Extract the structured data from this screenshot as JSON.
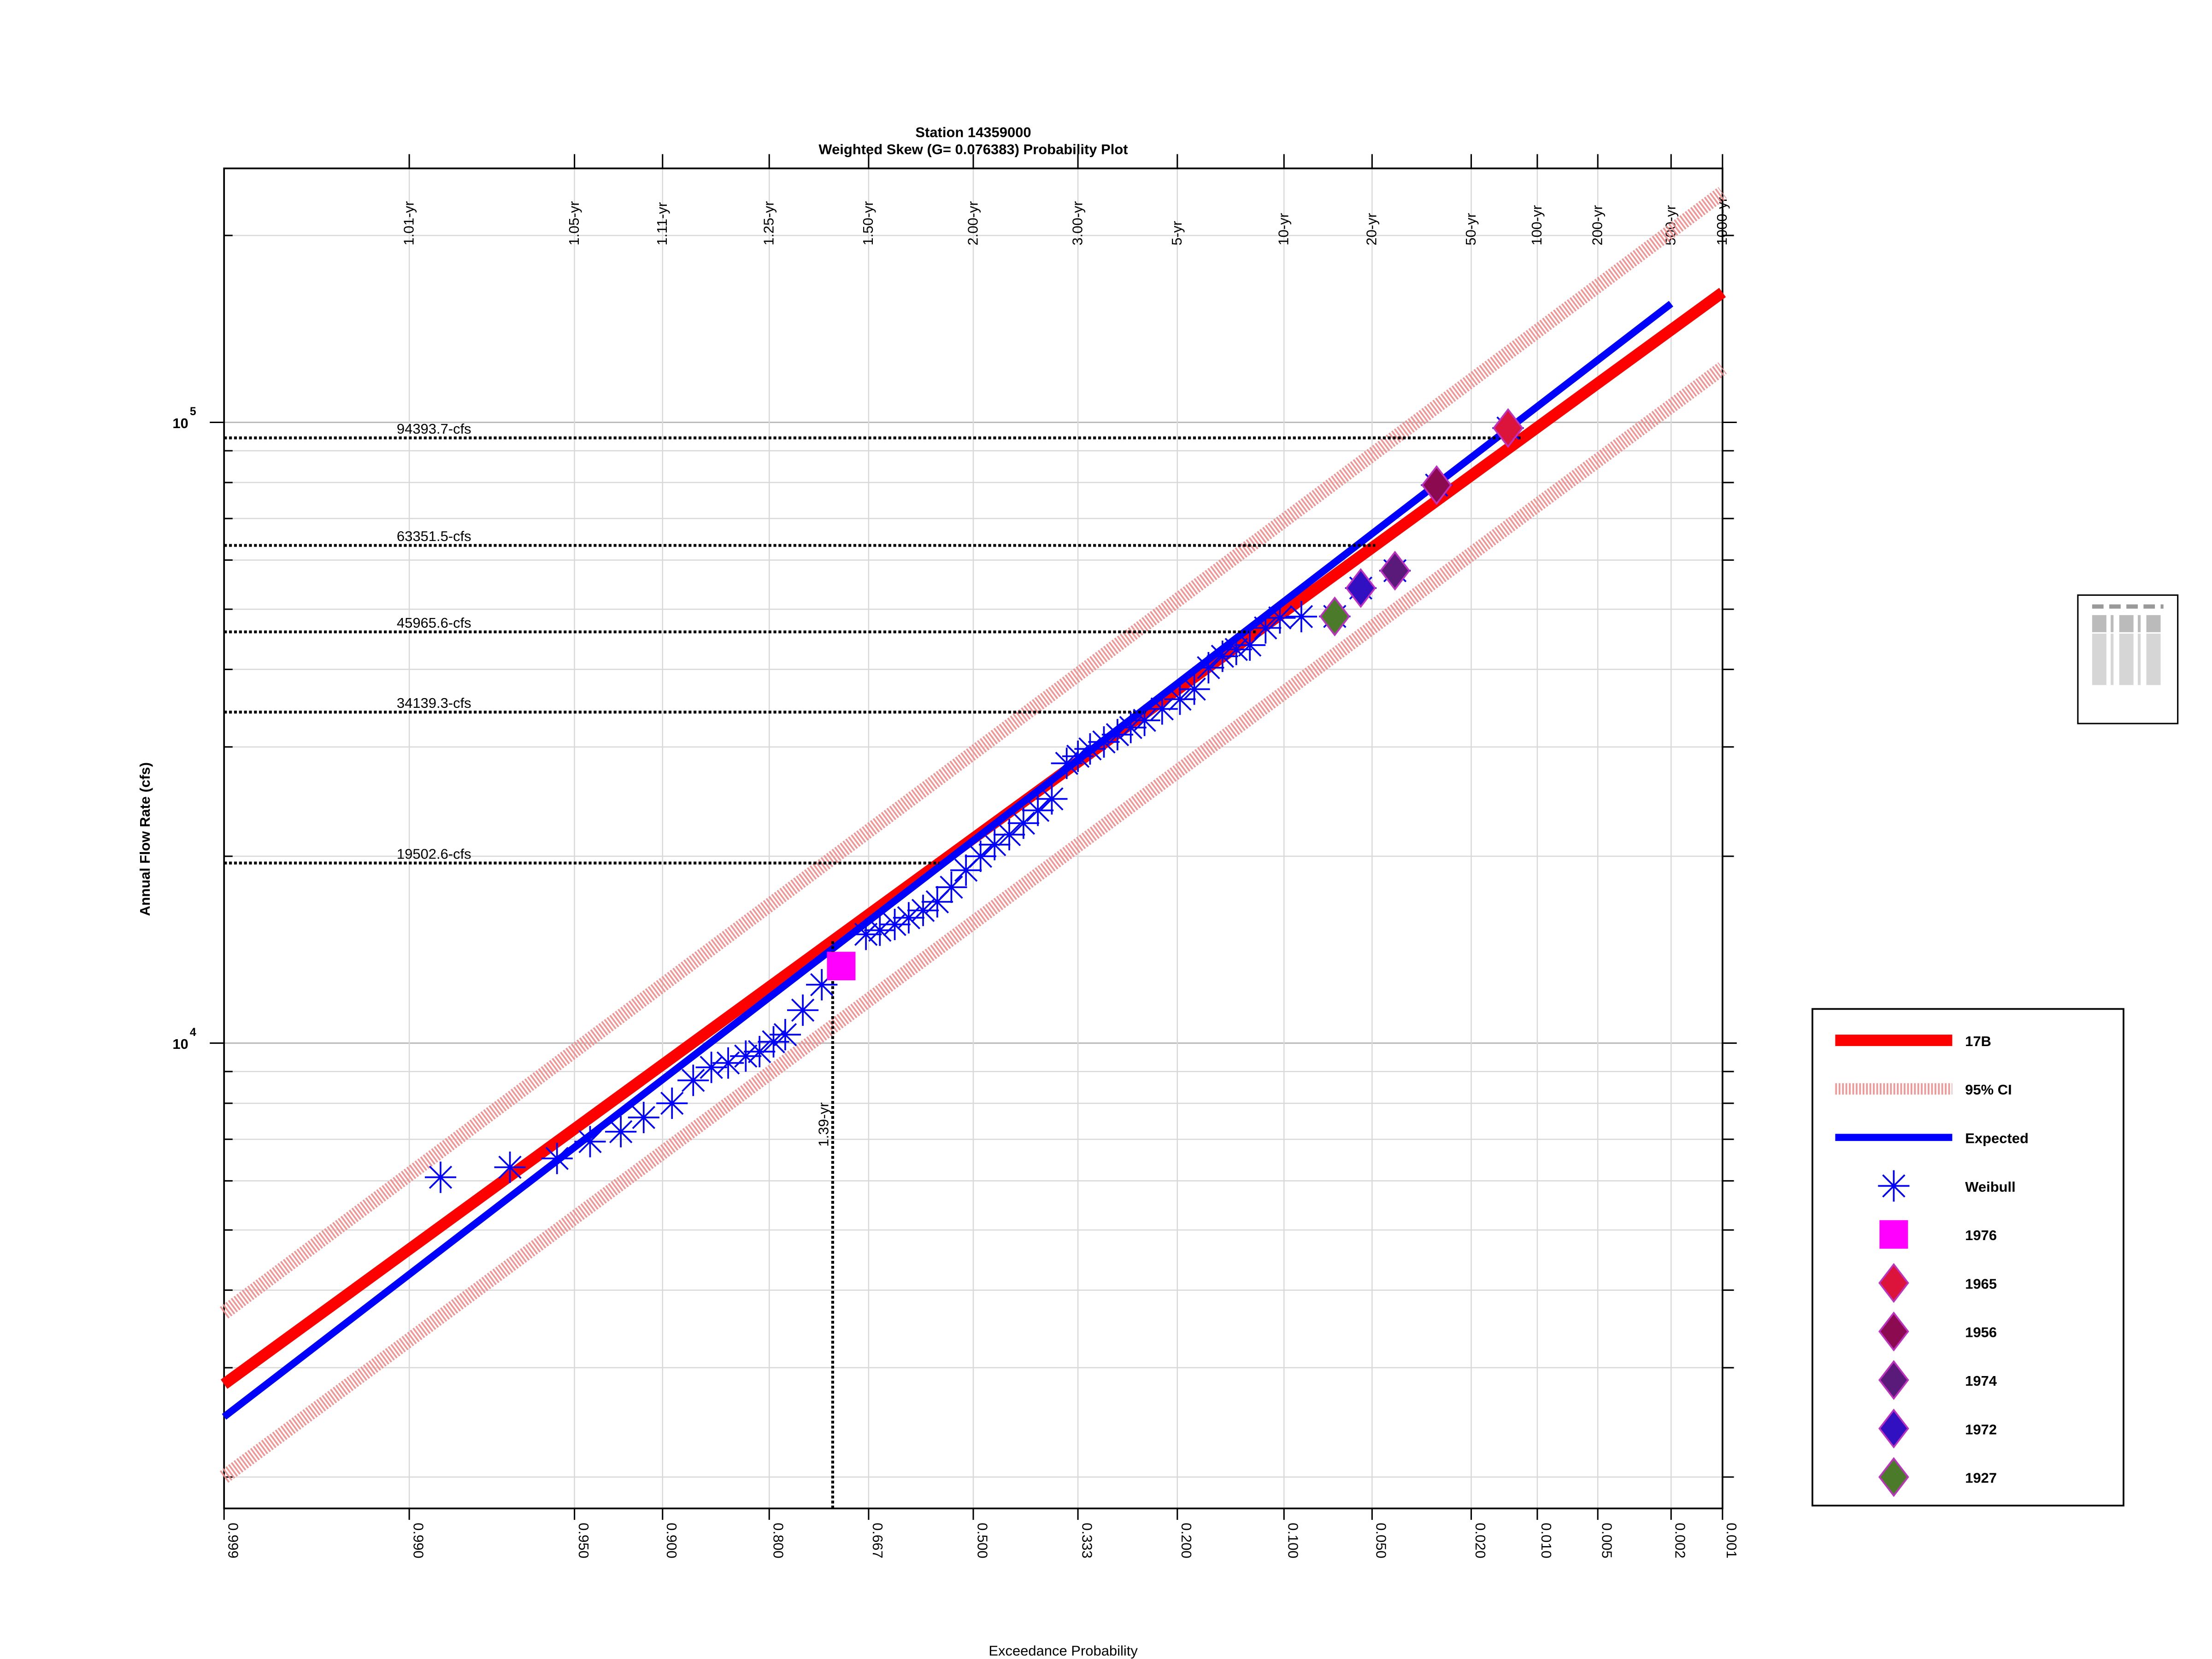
{
  "chart_data": {
    "type": "probability",
    "title": "Station 14359000",
    "subtitle": "Weighted Skew (G= 0.076383) Probability Plot",
    "xlabel": "Exceedance Probability",
    "ylabel": "Annual Flow Rate (cfs)",
    "xscale": "normal",
    "yscale": "log",
    "grid": true,
    "legend": "outside right",
    "xlim": [
      0.999,
      0.001
    ],
    "ylim": [
      1780,
      256500
    ],
    "xticks": [
      {
        "value": 0.999,
        "label": "0.999"
      },
      {
        "value": 0.99,
        "label": "0.990"
      },
      {
        "value": 0.95,
        "label": "0.950"
      },
      {
        "value": 0.9,
        "label": "0.900"
      },
      {
        "value": 0.8,
        "label": "0.800"
      },
      {
        "value": 0.667,
        "label": "0.667"
      },
      {
        "value": 0.5,
        "label": "0.500"
      },
      {
        "value": 0.333,
        "label": "0.333"
      },
      {
        "value": 0.2,
        "label": "0.200"
      },
      {
        "value": 0.1,
        "label": "0.100"
      },
      {
        "value": 0.05,
        "label": "0.050"
      },
      {
        "value": 0.02,
        "label": "0.020"
      },
      {
        "value": 0.01,
        "label": "0.010"
      },
      {
        "value": 0.005,
        "label": "0.005"
      },
      {
        "value": 0.002,
        "label": "0.002"
      },
      {
        "value": 0.001,
        "label": "0.001"
      }
    ],
    "top_ticks": [
      {
        "value": 0.99,
        "label": "1.01-yr"
      },
      {
        "value": 0.95,
        "label": "1.05-yr"
      },
      {
        "value": 0.9,
        "label": "1.11-yr"
      },
      {
        "value": 0.8,
        "label": "1.25-yr"
      },
      {
        "value": 0.667,
        "label": "1.50-yr"
      },
      {
        "value": 0.5,
        "label": "2.00-yr"
      },
      {
        "value": 0.333,
        "label": "3.00-yr"
      },
      {
        "value": 0.2,
        "label": "5-yr"
      },
      {
        "value": 0.1,
        "label": "10-yr"
      },
      {
        "value": 0.05,
        "label": "20-yr"
      },
      {
        "value": 0.02,
        "label": "50-yr"
      },
      {
        "value": 0.01,
        "label": "100-yr"
      },
      {
        "value": 0.005,
        "label": "200-yr"
      },
      {
        "value": 0.002,
        "label": "500-yr"
      },
      {
        "value": 0.001,
        "label": "1000-yr"
      }
    ],
    "yticks": [
      {
        "value": 10000,
        "label": "10",
        "exponent": "4"
      },
      {
        "value": 100000,
        "label": "10",
        "exponent": "5"
      }
    ],
    "yminorticks": [
      2000,
      3000,
      4000,
      5000,
      6000,
      7000,
      8000,
      9000,
      20000,
      30000,
      40000,
      50000,
      60000,
      70000,
      80000,
      90000,
      200000
    ],
    "lines": [
      {
        "name": "17B",
        "color": "#ff0000",
        "width": 8,
        "x": [
          0.999,
          0.001
        ],
        "values": [
          2822,
          161900
        ]
      },
      {
        "name": "95% CI",
        "color": "#f08a8a",
        "width": 10,
        "x": [
          0.999,
          0.001
        ],
        "upper": [
          3678,
          234400
        ],
        "lower": [
          2000,
          122300
        ]
      },
      {
        "name": "Expected",
        "color": "#0000ff",
        "width": 5,
        "x": [
          0.999,
          0.002
        ],
        "values": [
          2500,
          155300
        ]
      }
    ],
    "points": [
      {
        "name": "Weibull",
        "marker": "star",
        "color": "#0000ff",
        "x": [
          0.986,
          0.972,
          0.957,
          0.943,
          0.927,
          0.913,
          0.893,
          0.876,
          0.86,
          0.844,
          0.826,
          0.811,
          0.795,
          0.781,
          0.759,
          0.734,
          0.671,
          0.65,
          0.627,
          0.605,
          0.582,
          0.559,
          0.536,
          0.512,
          0.488,
          0.465,
          0.441,
          0.418,
          0.395,
          0.373,
          0.35,
          0.333,
          0.315,
          0.295,
          0.276,
          0.258,
          0.24,
          0.218,
          0.197,
          0.181,
          0.166,
          0.152,
          0.139,
          0.127,
          0.114,
          0.103,
          0.088,
          0.068,
          0.055,
          0.041,
          0.028,
          0.0137
        ],
        "values": [
          6080,
          6310,
          6520,
          6940,
          7200,
          7590,
          8000,
          8710,
          9140,
          9290,
          9530,
          9690,
          10050,
          10320,
          11300,
          12420,
          14970,
          15200,
          15530,
          15920,
          16360,
          16890,
          17830,
          18990,
          20000,
          20880,
          21670,
          22610,
          23710,
          24740,
          28230,
          28980,
          29780,
          30560,
          31400,
          32240,
          33110,
          34540,
          35810,
          37170,
          40250,
          41990,
          43070,
          43770,
          46650,
          48420,
          48650,
          48680,
          54080,
          57680,
          79230,
          97900
        ]
      },
      {
        "name": "1976",
        "marker": "square",
        "color": "#ff00ff",
        "x": [
          0.707
        ],
        "values": [
          13310
        ]
      },
      {
        "name": "1965",
        "marker": "diamond",
        "color": "#dc143c",
        "x": [
          0.0137
        ],
        "values": [
          97900
        ]
      },
      {
        "name": "1956",
        "marker": "diamond",
        "color": "#8b0a50",
        "x": [
          0.028
        ],
        "values": [
          79230
        ]
      },
      {
        "name": "1974",
        "marker": "diamond",
        "color": "#5a1a7a",
        "x": [
          0.041
        ],
        "values": [
          57680
        ]
      },
      {
        "name": "1972",
        "marker": "diamond",
        "color": "#3010c0",
        "x": [
          0.055
        ],
        "values": [
          54080
        ]
      },
      {
        "name": "1927",
        "marker": "diamond",
        "color": "#4a7a2a",
        "x": [
          0.068
        ],
        "values": [
          48680
        ]
      }
    ],
    "reference_lines": [
      {
        "value": 94393.7,
        "label": "94393.7-cfs"
      },
      {
        "value": 63351.5,
        "label": "63351.5-cfs"
      },
      {
        "value": 45965.6,
        "label": "45965.6-cfs"
      },
      {
        "value": 34139.3,
        "label": "34139.3-cfs"
      },
      {
        "value": 19502.6,
        "label": "19502.6-cfs"
      }
    ],
    "return_period_marker": {
      "value": 0.719,
      "label": "1.39-yr"
    }
  }
}
